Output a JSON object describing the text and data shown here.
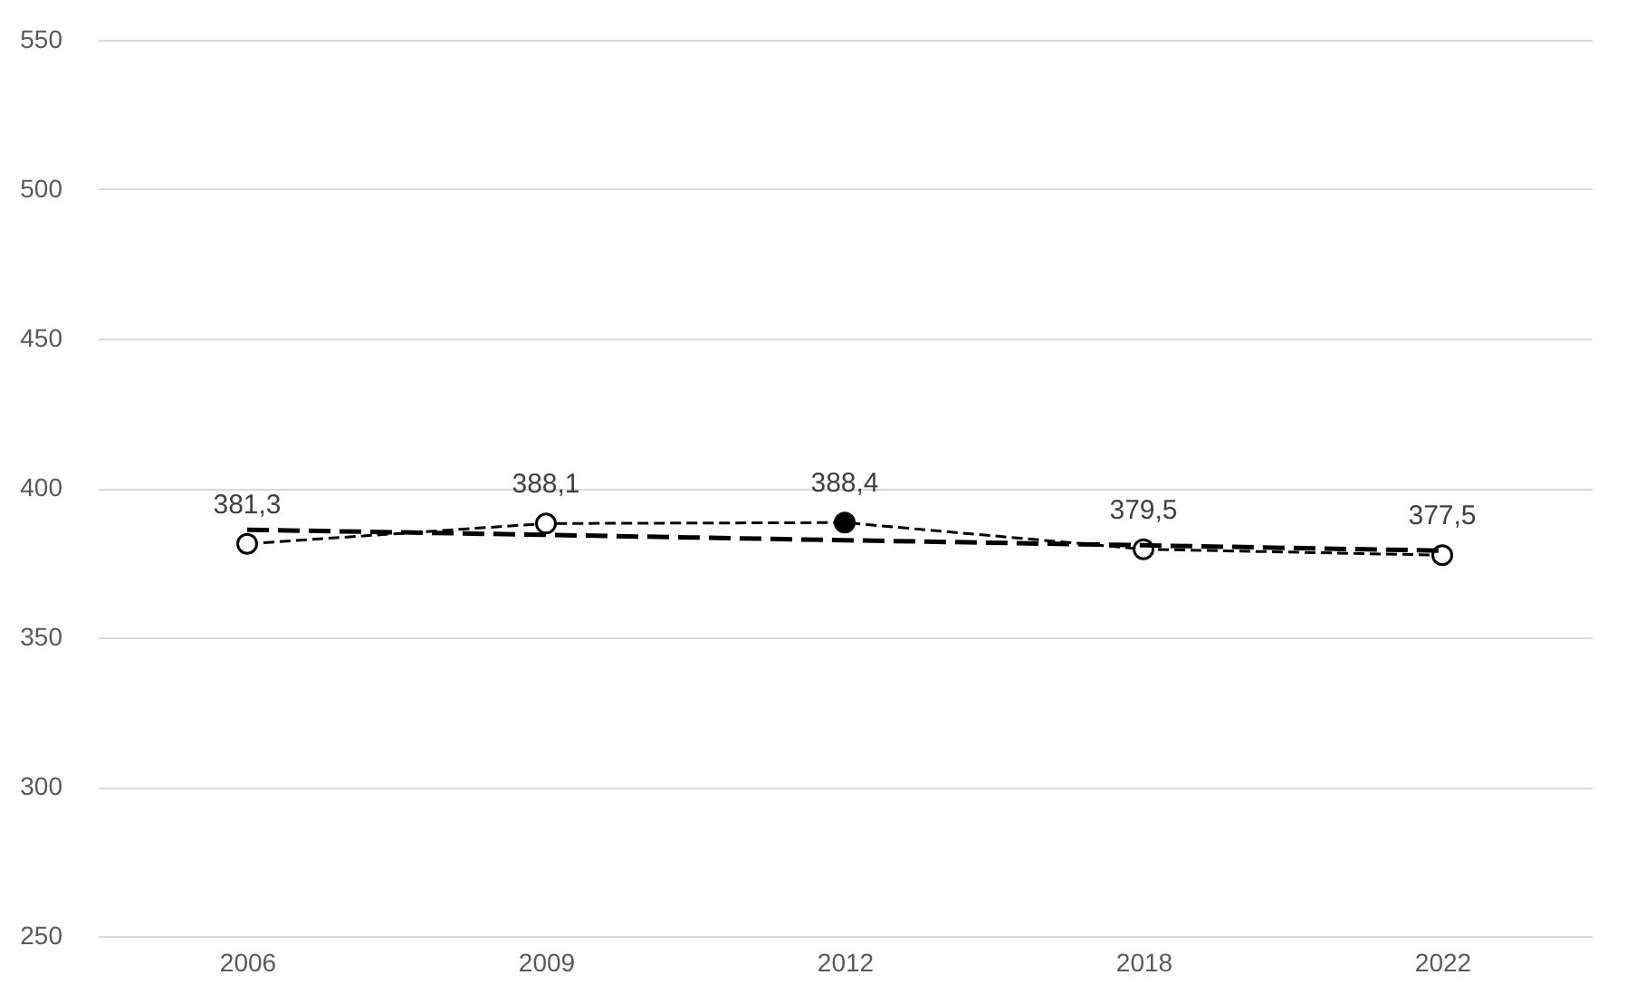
{
  "chart_data": {
    "type": "line",
    "categories": [
      "2006",
      "2009",
      "2012",
      "2018",
      "2022"
    ],
    "series": [
      {
        "color": "#000000",
        "values": [
          381.3,
          388.1,
          388.4,
          379.5,
          377.5
        ],
        "colors": [
          "#ffffff",
          "#ffffff",
          "#000000",
          "#ffffff",
          "#ffffff"
        ],
        "value_labels": [
          "381,3",
          "388,1",
          "388,4",
          "379,5",
          "377,5"
        ],
        "marker": "circle",
        "line_style": "dashed"
      },
      {
        "color": "#000000",
        "values": [
          386,
          384.3,
          382.5,
          380.8,
          379
        ],
        "marker": "none",
        "line_style": "dashed"
      }
    ],
    "ylim": [
      250,
      550
    ],
    "yticks": [
      250,
      300,
      350,
      400,
      450,
      500,
      550
    ],
    "grid": "y"
  }
}
